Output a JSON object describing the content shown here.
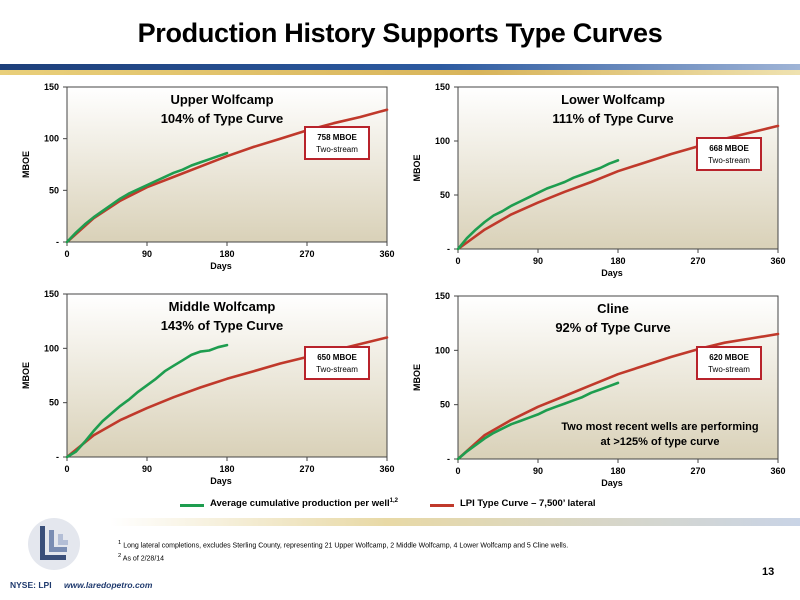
{
  "title": "Production History Supports Type Curves",
  "colors": {
    "actual": "#1e9d4f",
    "type_curve": "#c0392b",
    "plot_bg_top": "#ffffff",
    "plot_bg_bottom": "#d9d1b8",
    "callout_border": "#b8232b"
  },
  "chart_data": [
    {
      "type": "line",
      "title": "Upper Wolfcamp",
      "subtitle": "104% of Type Curve",
      "xlabel": "Days",
      "ylabel": "MBOE",
      "xlim": [
        0,
        360
      ],
      "ylim": [
        0,
        150
      ],
      "xticks": [
        "0",
        "90",
        "180",
        "270",
        "360"
      ],
      "yticks": [
        "-",
        "50",
        "100",
        "150"
      ],
      "callout": [
        "758 MBOE",
        "Two-stream"
      ],
      "series": [
        {
          "name": "Average cumulative production per well",
          "x": [
            0,
            10,
            20,
            30,
            40,
            50,
            60,
            70,
            80,
            90,
            100,
            110,
            120,
            130,
            140,
            150,
            160,
            170,
            180
          ],
          "y": [
            0,
            9,
            17,
            24,
            30,
            36,
            42,
            47,
            51,
            55,
            59,
            63,
            67,
            70,
            74,
            77,
            80,
            83,
            86
          ]
        },
        {
          "name": "LPI Type Curve – 7,500’ lateral",
          "x": [
            0,
            30,
            60,
            90,
            120,
            150,
            180,
            210,
            240,
            270,
            300,
            330,
            360
          ],
          "y": [
            0,
            23,
            40,
            53,
            63,
            73,
            83,
            92,
            100,
            108,
            115,
            121,
            128
          ]
        }
      ]
    },
    {
      "type": "line",
      "title": "Lower Wolfcamp",
      "subtitle": "111% of Type Curve",
      "xlabel": "Days",
      "ylabel": "MBOE",
      "xlim": [
        0,
        360
      ],
      "ylim": [
        0,
        150
      ],
      "xticks": [
        "0",
        "90",
        "180",
        "270",
        "360"
      ],
      "yticks": [
        "-",
        "50",
        "100",
        "150"
      ],
      "callout": [
        "668 MBOE",
        "Two-stream"
      ],
      "series": [
        {
          "name": "Average cumulative production per well",
          "x": [
            0,
            10,
            20,
            30,
            40,
            50,
            60,
            70,
            80,
            90,
            100,
            110,
            120,
            130,
            140,
            150,
            160,
            170,
            180
          ],
          "y": [
            0,
            10,
            18,
            25,
            31,
            35,
            40,
            44,
            48,
            52,
            56,
            59,
            62,
            66,
            69,
            72,
            75,
            79,
            82
          ]
        },
        {
          "name": "LPI Type Curve – 7,500’ lateral",
          "x": [
            0,
            30,
            60,
            90,
            120,
            150,
            180,
            210,
            240,
            270,
            300,
            330,
            360
          ],
          "y": [
            0,
            18,
            32,
            43,
            53,
            62,
            72,
            80,
            88,
            95,
            102,
            108,
            114
          ]
        }
      ]
    },
    {
      "type": "line",
      "title": "Middle Wolfcamp",
      "subtitle": "143% of Type Curve",
      "xlabel": "Days",
      "ylabel": "MBOE",
      "xlim": [
        0,
        360
      ],
      "ylim": [
        0,
        150
      ],
      "xticks": [
        "0",
        "90",
        "180",
        "270",
        "360"
      ],
      "yticks": [
        "-",
        "50",
        "100",
        "150"
      ],
      "callout": [
        "650 MBOE",
        "Two-stream"
      ],
      "series": [
        {
          "name": "Average cumulative production per well",
          "x": [
            0,
            10,
            20,
            30,
            40,
            50,
            60,
            70,
            80,
            90,
            100,
            110,
            120,
            130,
            140,
            150,
            160,
            170,
            180
          ],
          "y": [
            0,
            5,
            14,
            24,
            33,
            40,
            47,
            53,
            60,
            66,
            72,
            79,
            84,
            89,
            94,
            97,
            98,
            101,
            103
          ]
        },
        {
          "name": "LPI Type Curve – 7,500’ lateral",
          "x": [
            0,
            30,
            60,
            90,
            120,
            150,
            180,
            210,
            240,
            270,
            300,
            330,
            360
          ],
          "y": [
            0,
            20,
            34,
            45,
            55,
            64,
            72,
            79,
            86,
            92,
            98,
            104,
            110
          ]
        }
      ]
    },
    {
      "type": "line",
      "title": "Cline",
      "subtitle": "92% of Type Curve",
      "xlabel": "Days",
      "ylabel": "MBOE",
      "xlim": [
        0,
        360
      ],
      "ylim": [
        0,
        150
      ],
      "xticks": [
        "0",
        "90",
        "180",
        "270",
        "360"
      ],
      "yticks": [
        "-",
        "50",
        "100",
        "150"
      ],
      "callout": [
        "620 MBOE",
        "Two-stream"
      ],
      "annotation": [
        "Two most recent wells are performing",
        "at >125% of type curve"
      ],
      "series": [
        {
          "name": "Average cumulative production per well",
          "x": [
            0,
            10,
            20,
            30,
            40,
            50,
            60,
            70,
            80,
            90,
            100,
            110,
            120,
            130,
            140,
            150,
            160,
            170,
            180
          ],
          "y": [
            0,
            7,
            13,
            19,
            24,
            28,
            32,
            35,
            38,
            41,
            45,
            48,
            51,
            54,
            57,
            61,
            64,
            67,
            70
          ]
        },
        {
          "name": "LPI Type Curve – 7,500’ lateral",
          "x": [
            0,
            30,
            60,
            90,
            120,
            150,
            180,
            210,
            240,
            270,
            300,
            330,
            360
          ],
          "y": [
            0,
            22,
            36,
            48,
            58,
            68,
            78,
            86,
            94,
            101,
            107,
            111,
            115
          ]
        }
      ]
    }
  ],
  "legend": {
    "actual": "Average cumulative production per well",
    "actual_sup": "1,2",
    "type_curve": "LPI Type Curve – 7,500’ lateral"
  },
  "footnotes": [
    {
      "num": "1",
      "text": " Long lateral completions, excludes Sterling County, representing 21 Upper Wolfcamp, 2 Middle Wolfcamp, 4 Lower Wolfcamp and 5 Cline wells."
    },
    {
      "num": "2",
      "text": " As of 2/28/14"
    }
  ],
  "page_number": "13",
  "ticker": "NYSE: LPI",
  "website": "www.laredopetro.com"
}
